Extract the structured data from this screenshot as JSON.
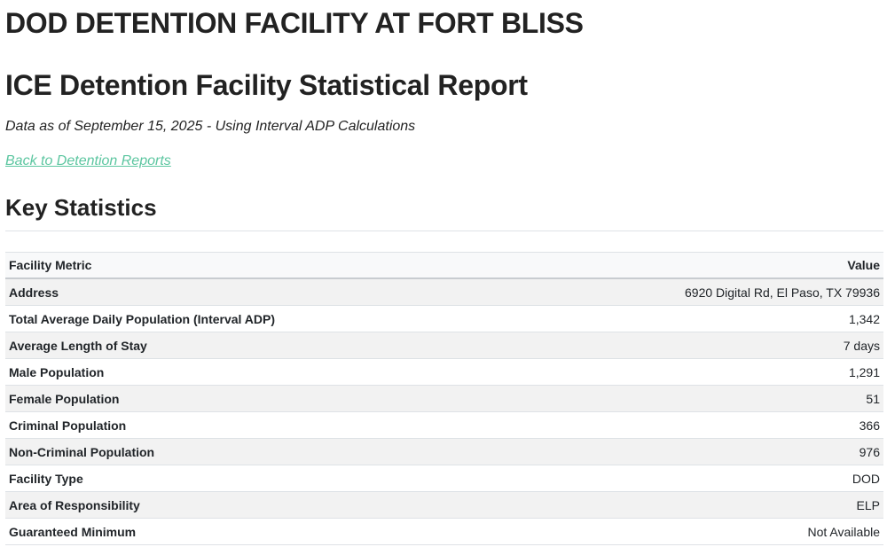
{
  "page": {
    "facility_title": "DOD DETENTION FACILITY AT FORT BLISS",
    "report_title": "ICE Detention Facility Statistical Report",
    "subtitle": "Data as of September 15, 2025 - Using Interval ADP Calculations",
    "back_link": "Back to Detention Reports",
    "section_title": "Key Statistics"
  },
  "colors": {
    "link": "#5cc6a0",
    "row_alt": "#f2f2f2",
    "header_bg": "#f8f9fa"
  },
  "table": {
    "headers": [
      "Facility Metric",
      "Value"
    ],
    "rows": [
      {
        "metric": "Address",
        "value": "6920 Digital Rd, El Paso, TX 79936"
      },
      {
        "metric": "Total Average Daily Population (Interval ADP)",
        "value": "1,342"
      },
      {
        "metric": "Average Length of Stay",
        "value": "7 days"
      },
      {
        "metric": "Male Population",
        "value": "1,291"
      },
      {
        "metric": "Female Population",
        "value": "51"
      },
      {
        "metric": "Criminal Population",
        "value": "366"
      },
      {
        "metric": "Non-Criminal Population",
        "value": "976"
      },
      {
        "metric": "Facility Type",
        "value": "DOD"
      },
      {
        "metric": "Area of Responsibility",
        "value": "ELP"
      },
      {
        "metric": "Guaranteed Minimum",
        "value": "Not Available"
      }
    ]
  }
}
